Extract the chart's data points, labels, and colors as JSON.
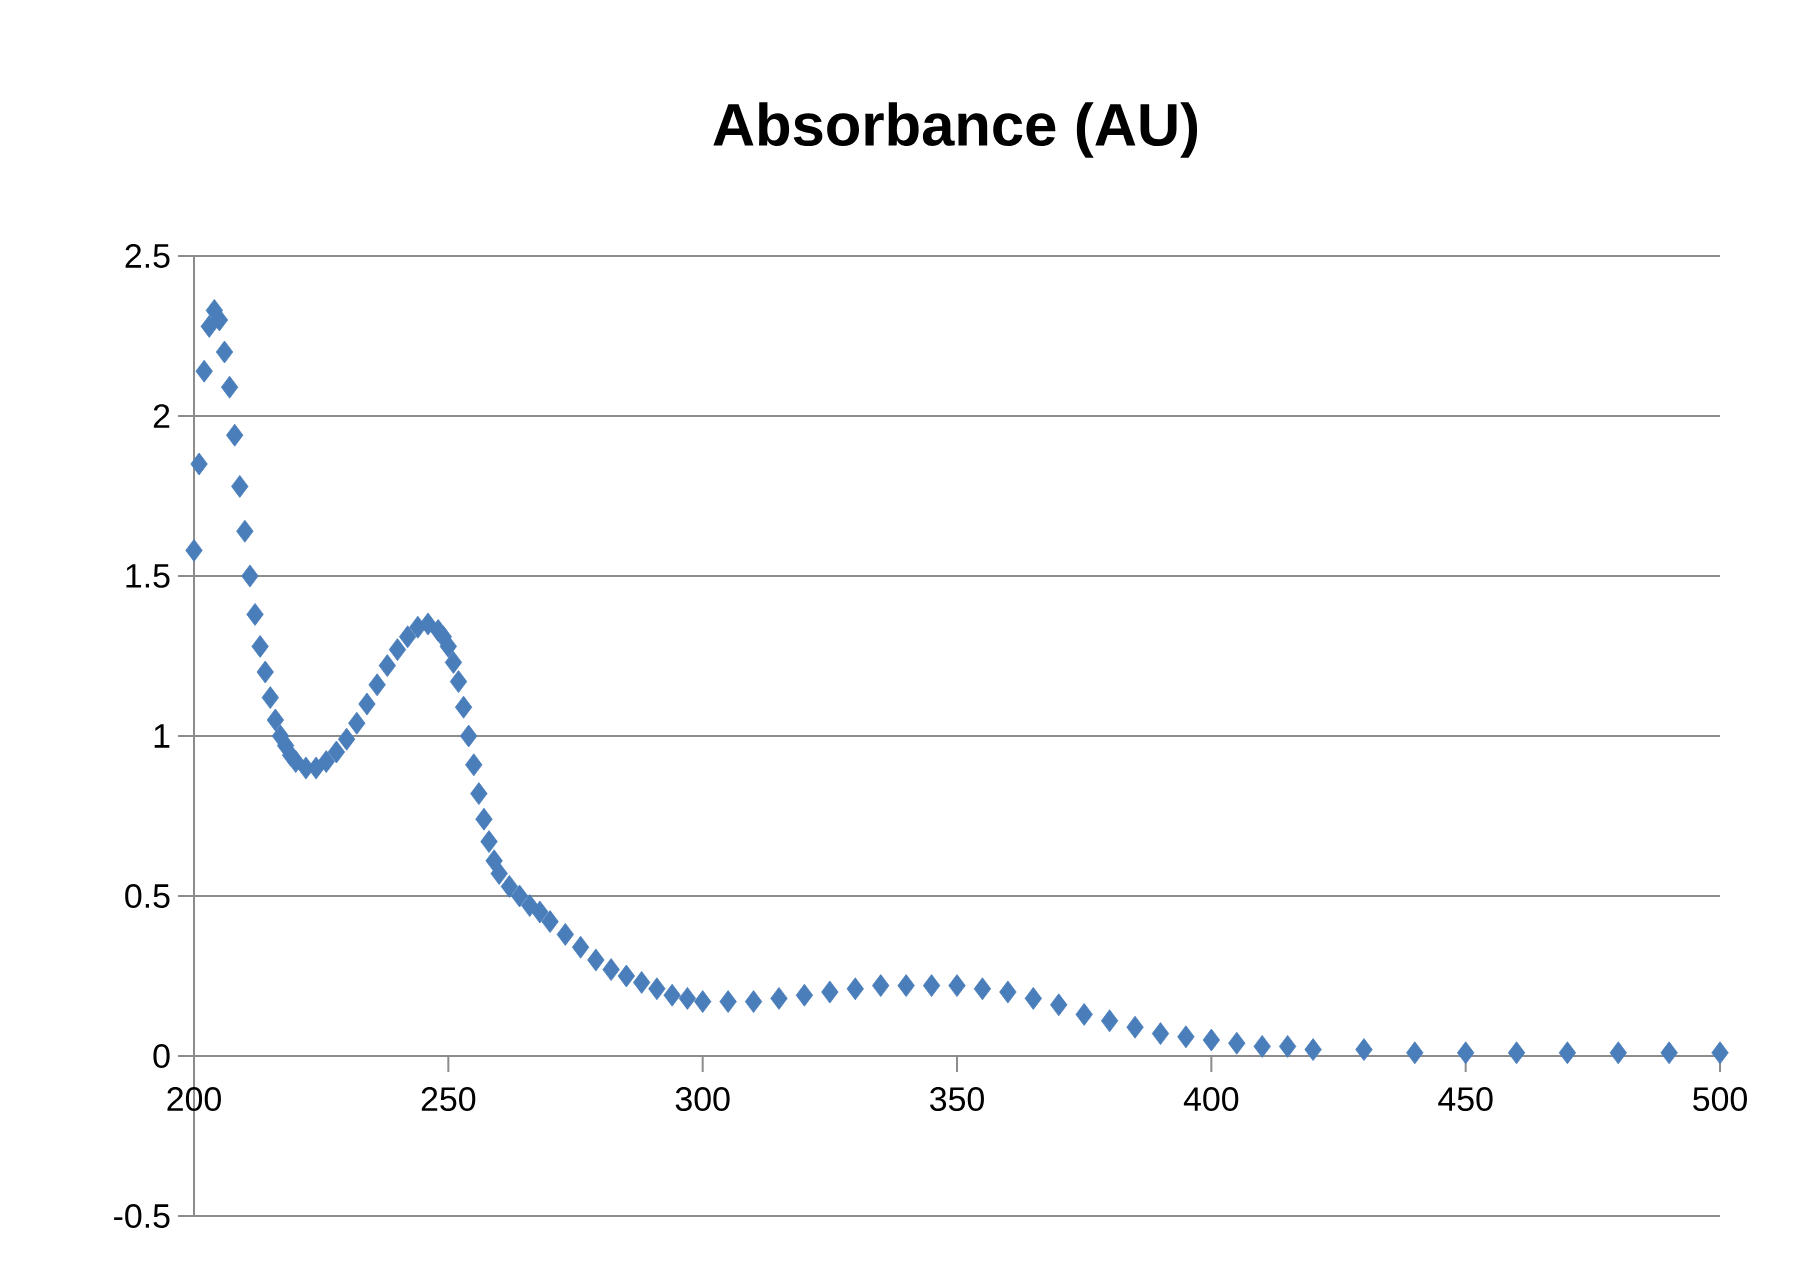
{
  "chart_data": {
    "type": "scatter",
    "title": "Absorbance (AU)",
    "x": [
      200,
      201,
      202,
      203,
      204,
      205,
      206,
      207,
      208,
      209,
      210,
      211,
      212,
      213,
      214,
      215,
      216,
      217,
      218,
      219,
      220,
      222,
      224,
      226,
      228,
      230,
      232,
      234,
      236,
      238,
      240,
      242,
      244,
      246,
      248,
      249,
      250,
      251,
      252,
      253,
      254,
      255,
      256,
      257,
      258,
      259,
      260,
      262,
      264,
      266,
      268,
      270,
      273,
      276,
      279,
      282,
      285,
      288,
      291,
      294,
      297,
      300,
      305,
      310,
      315,
      320,
      325,
      330,
      335,
      340,
      345,
      350,
      355,
      360,
      365,
      370,
      375,
      380,
      385,
      390,
      395,
      400,
      405,
      410,
      415,
      420,
      430,
      440,
      450,
      460,
      470,
      480,
      490,
      500
    ],
    "values": [
      1.58,
      1.85,
      2.14,
      2.28,
      2.33,
      2.3,
      2.2,
      2.09,
      1.94,
      1.78,
      1.64,
      1.5,
      1.38,
      1.28,
      1.2,
      1.12,
      1.05,
      1.0,
      0.97,
      0.94,
      0.92,
      0.9,
      0.9,
      0.92,
      0.95,
      0.99,
      1.04,
      1.1,
      1.16,
      1.22,
      1.27,
      1.31,
      1.34,
      1.35,
      1.33,
      1.31,
      1.28,
      1.23,
      1.17,
      1.09,
      1.0,
      0.91,
      0.82,
      0.74,
      0.67,
      0.61,
      0.57,
      0.53,
      0.5,
      0.47,
      0.45,
      0.42,
      0.38,
      0.34,
      0.3,
      0.27,
      0.25,
      0.23,
      0.21,
      0.19,
      0.18,
      0.17,
      0.17,
      0.17,
      0.18,
      0.19,
      0.2,
      0.21,
      0.22,
      0.22,
      0.22,
      0.22,
      0.21,
      0.2,
      0.18,
      0.16,
      0.13,
      0.11,
      0.09,
      0.07,
      0.06,
      0.05,
      0.04,
      0.03,
      0.03,
      0.02,
      0.02,
      0.01,
      0.01,
      0.01,
      0.01,
      0.01,
      0.01,
      0.01
    ],
    "color": "#4a7ebb",
    "marker": "diamond",
    "grid": "y",
    "xlim": [
      200,
      500
    ],
    "ylim": [
      -0.5,
      2.5
    ],
    "xticks": [
      200,
      250,
      300,
      350,
      400,
      450,
      500
    ],
    "yticks": [
      -0.5,
      0,
      0.5,
      1,
      1.5,
      2,
      2.5
    ]
  }
}
